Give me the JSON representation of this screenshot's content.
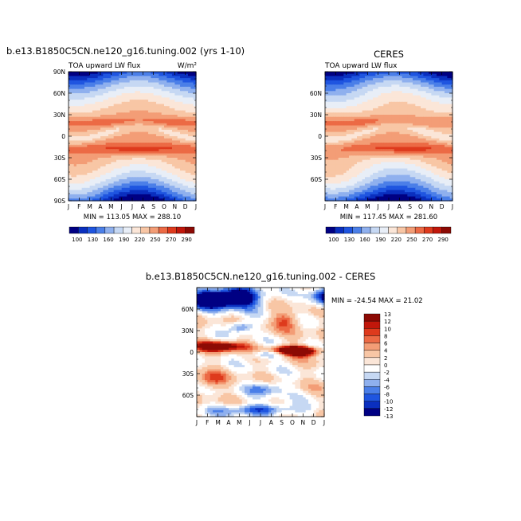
{
  "months": [
    "J",
    "F",
    "M",
    "A",
    "M",
    "J",
    "J",
    "A",
    "S",
    "O",
    "N",
    "D",
    "J"
  ],
  "lat_ticks": [
    "90N",
    "60N",
    "30N",
    "0",
    "30S",
    "60S",
    "90S"
  ],
  "lat_ticks_short": [
    "60N",
    "30N",
    "0",
    "30S",
    "60S"
  ],
  "colors": {
    "abs": [
      "#000083",
      "#0a2fbf",
      "#1f55e0",
      "#4b7fe8",
      "#8fb0ee",
      "#c6d8f3",
      "#e8eef7",
      "#fbe6d8",
      "#f8c6a5",
      "#f39d76",
      "#ec6a45",
      "#de3a1d",
      "#c1170b",
      "#8c0a04"
    ],
    "diff": [
      "#000083",
      "#0a2fbf",
      "#1f55e0",
      "#4b7fe8",
      "#8fb0ee",
      "#c6d8f3",
      "#ffffff",
      "#fbe6d8",
      "#f8c6a5",
      "#f39d76",
      "#ec6a45",
      "#de3a1d",
      "#c1170b",
      "#8c0a04"
    ]
  },
  "panel1": {
    "title": "b.e13.B1850C5CN.ne120_g16.tuning.002 (yrs 1-10)",
    "subtitle": "TOA upward LW flux",
    "units": "W/m²",
    "stats": "MIN = 113.05  MAX = 288.10"
  },
  "panel2": {
    "title": "CERES",
    "subtitle": "TOA upward LW flux",
    "stats": "MIN = 117.45  MAX = 281.60"
  },
  "colorbar_abs": [
    "100",
    "130",
    "160",
    "190",
    "220",
    "250",
    "270",
    "290"
  ],
  "panel3": {
    "title": "b.e13.B1850C5CN.ne120_g16.tuning.002 - CERES",
    "stats": "MIN = -24.54  MAX =  21.02"
  },
  "colorbar_diff": [
    "13",
    "12",
    "10",
    "8",
    "6",
    "4",
    "2",
    "0",
    "-2",
    "-4",
    "-6",
    "-8",
    "-10",
    "-12",
    "-13"
  ],
  "chart_data": [
    {
      "type": "heatmap",
      "title": "b.e13.B1850C5CN.ne120_g16.tuning.002 (yrs 1-10)",
      "subtitle": "TOA upward LW flux",
      "units": "W/m²",
      "x": [
        "J",
        "F",
        "M",
        "A",
        "M",
        "J",
        "J",
        "A",
        "S",
        "O",
        "N",
        "D",
        "J"
      ],
      "y_range": [
        -90,
        90
      ],
      "min": 113.05,
      "max": 288.1,
      "levels": [
        100,
        130,
        160,
        190,
        220,
        250,
        270,
        290
      ],
      "field": "zonal-mean annual cycle"
    },
    {
      "type": "heatmap",
      "title": "CERES",
      "subtitle": "TOA upward LW flux",
      "x": [
        "J",
        "F",
        "M",
        "A",
        "M",
        "J",
        "J",
        "A",
        "S",
        "O",
        "N",
        "D",
        "J"
      ],
      "y_range": [
        -90,
        90
      ],
      "min": 117.45,
      "max": 281.6,
      "levels": [
        100,
        130,
        160,
        190,
        220,
        250,
        270,
        290
      ]
    },
    {
      "type": "heatmap",
      "title": "b.e13.B1850C5CN.ne120_g16.tuning.002 - CERES",
      "x": [
        "J",
        "F",
        "M",
        "A",
        "M",
        "J",
        "J",
        "A",
        "S",
        "O",
        "N",
        "D",
        "J"
      ],
      "y_range": [
        -90,
        90
      ],
      "min": -24.54,
      "max": 21.02,
      "levels": [
        -13,
        -12,
        -10,
        -8,
        -6,
        -4,
        -2,
        0,
        2,
        4,
        6,
        8,
        10,
        12,
        13
      ]
    }
  ]
}
